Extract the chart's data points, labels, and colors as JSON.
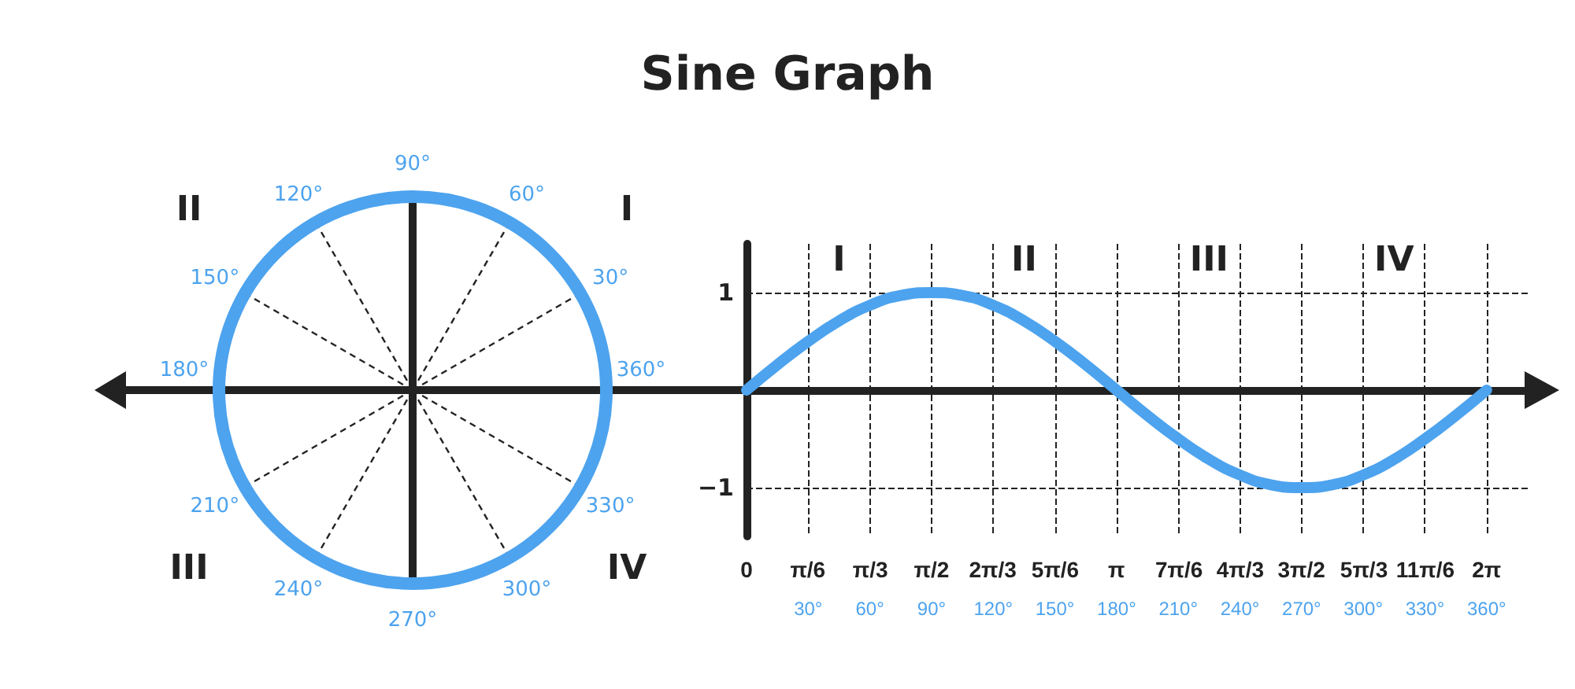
{
  "chart_data": [
    {
      "type": "other",
      "title": "Sine Graph",
      "annotations": [
        "360°",
        "30°",
        "60°",
        "90°",
        "120°",
        "150°",
        "180°",
        "210°",
        "240°",
        "270°",
        "300°",
        "330°",
        "I",
        "II",
        "III",
        "IV"
      ]
    },
    {
      "type": "line",
      "x": [
        0,
        15,
        30,
        45,
        60,
        75,
        90,
        105,
        120,
        135,
        150,
        165,
        180,
        195,
        210,
        225,
        240,
        255,
        270,
        285,
        300,
        315,
        330,
        345,
        360
      ],
      "series": [
        {
          "color": "#4da3ee",
          "values": [
            0,
            0.26,
            0.5,
            0.71,
            0.87,
            0.97,
            1,
            0.97,
            0.87,
            0.71,
            0.5,
            0.26,
            0,
            -0.26,
            -0.5,
            -0.71,
            -0.87,
            -0.97,
            -1,
            -0.97,
            -0.87,
            -0.71,
            -0.5,
            -0.26,
            0
          ]
        }
      ],
      "xlim": [
        0,
        380
      ],
      "ylim": [
        -1.5,
        1.5
      ],
      "xticks": [
        {
          "value": 30,
          "label": "30°"
        },
        {
          "value": 60,
          "label": "60°"
        },
        {
          "value": 90,
          "label": "90°"
        },
        {
          "value": 120,
          "label": "120°"
        },
        {
          "value": 150,
          "label": "150°"
        },
        {
          "value": 180,
          "label": "180°"
        },
        {
          "value": 210,
          "label": "210°"
        },
        {
          "value": 240,
          "label": "240°"
        },
        {
          "value": 270,
          "label": "270°"
        },
        {
          "value": 300,
          "label": "300°"
        },
        {
          "value": 330,
          "label": "330°"
        },
        {
          "value": 360,
          "label": "360°"
        }
      ],
      "x2lim": [
        0,
        6.63
      ],
      "x2ticks": [
        0,
        {
          "value": 0.52,
          "label": "π/6"
        },
        {
          "value": 1.05,
          "label": "π/3"
        },
        {
          "value": 1.57,
          "label": "π/2"
        },
        {
          "value": 2.09,
          "label": "2π/3"
        },
        {
          "value": 2.62,
          "label": "5π/6"
        },
        {
          "value": 3.14,
          "label": "π"
        },
        {
          "value": 3.67,
          "label": "7π/6"
        },
        {
          "value": 4.19,
          "label": "4π/3"
        },
        {
          "value": 4.71,
          "label": "3π/2"
        },
        {
          "value": 5.24,
          "label": "5π/3"
        },
        {
          "value": 5.76,
          "label": "11π/6"
        },
        {
          "value": 6.28,
          "label": "2π"
        }
      ],
      "yticks": [
        1,
        {
          "value": -1,
          "label": "−1"
        }
      ],
      "grid": true,
      "marker": "none",
      "line_style": "solid",
      "annotations": [
        "I",
        "II",
        "III",
        "IV"
      ]
    }
  ]
}
